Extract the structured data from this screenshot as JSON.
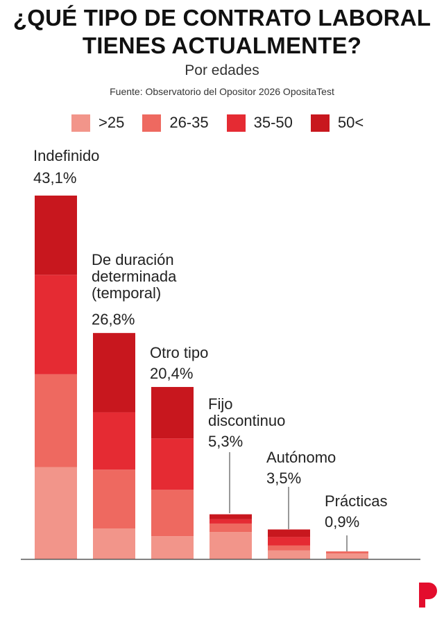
{
  "title_line1": "¿QUÉ TIPO DE CONTRATO LABORAL",
  "title_line2": "TIENES ACTUALMENTE?",
  "subtitle": "Por edades",
  "source": "Fuente: Observatorio del Opositor 2026 OpositaTest",
  "logo_letter": "P",
  "chart_data": {
    "type": "bar",
    "stacked": true,
    "legend_position": "top",
    "grid": false,
    "categories": [
      "Indefinido",
      "De duración determinada (temporal)",
      "Otro tipo",
      "Fijo discontinuo",
      "Autónomo",
      "Prácticas"
    ],
    "category_labels": [
      [
        "Indefinido"
      ],
      [
        "De duración",
        "determinada",
        "(temporal)"
      ],
      [
        "Otro tipo"
      ],
      [
        "Fijo",
        "discontinuo"
      ],
      [
        "Autónomo"
      ],
      [
        "Prácticas"
      ]
    ],
    "totals": [
      43.1,
      26.8,
      20.4,
      5.3,
      3.5,
      0.9
    ],
    "total_labels": [
      "43,1%",
      "26,8%",
      "20,4%",
      "5,3%",
      "3,5%",
      "0,9%"
    ],
    "series": [
      {
        "name": ">25",
        "color": "#F2958A",
        "values": [
          10.9,
          3.6,
          2.7,
          3.2,
          1.0,
          0.65
        ]
      },
      {
        "name": "26-35",
        "color": "#EE6960",
        "values": [
          11.0,
          7.0,
          5.5,
          1.0,
          0.6,
          0.25
        ]
      },
      {
        "name": "35-50",
        "color": "#E52B33",
        "values": [
          11.8,
          6.8,
          6.1,
          0.5,
          1.0,
          0
        ]
      },
      {
        "name": "50<",
        "color": "#C8171E",
        "values": [
          9.4,
          9.4,
          6.1,
          0.6,
          0.9,
          0
        ]
      }
    ]
  }
}
